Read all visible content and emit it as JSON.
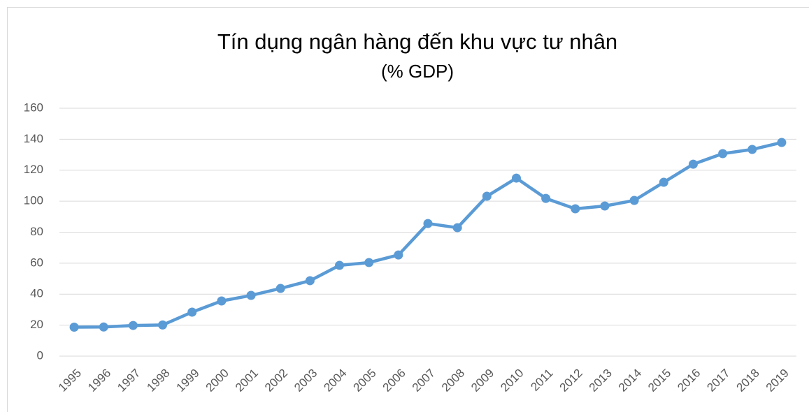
{
  "chart_data": {
    "type": "line",
    "title": "Tín dụng ngân hàng đến khu vực tư nhân",
    "subtitle": "(%  GDP)",
    "categories": [
      "1995",
      "1996",
      "1997",
      "1998",
      "1999",
      "2000",
      "2001",
      "2002",
      "2003",
      "2004",
      "2005",
      "2006",
      "2007",
      "2008",
      "2009",
      "2010",
      "2011",
      "2012",
      "2013",
      "2014",
      "2015",
      "2016",
      "2017",
      "2018",
      "2019"
    ],
    "series": [
      {
        "name": "Tín dụng ngân hàng đến khu vực tư nhân",
        "color": "#5b9bd5",
        "values": [
          18.7,
          18.8,
          19.8,
          20.1,
          28.4,
          35.6,
          39.2,
          43.7,
          48.7,
          58.6,
          60.4,
          65.3,
          85.6,
          82.9,
          103.2,
          114.9,
          101.8,
          95.1,
          96.9,
          100.5,
          112.2,
          123.9,
          130.7,
          133.4,
          137.9
        ]
      }
    ],
    "ylim": [
      0,
      160
    ],
    "yticks": [
      0,
      20,
      40,
      60,
      80,
      100,
      120,
      140,
      160
    ],
    "grid": true
  }
}
